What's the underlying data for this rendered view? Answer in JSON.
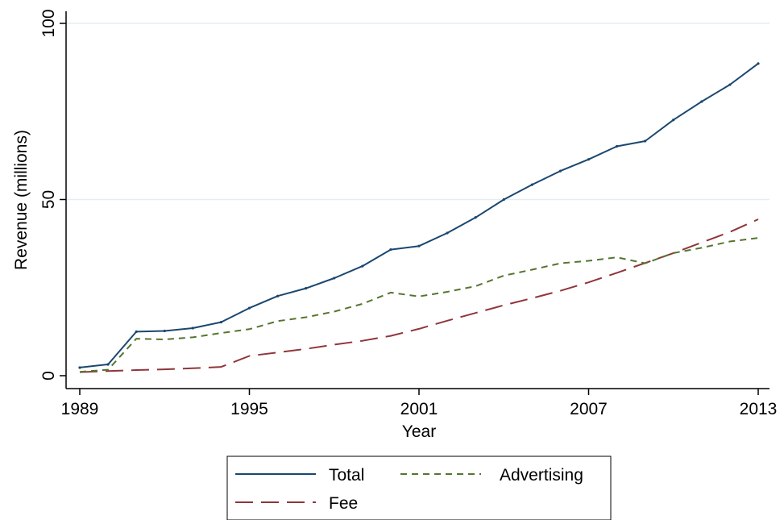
{
  "chart_data": {
    "type": "line",
    "xlabel": "Year",
    "ylabel": "Revenue (millions)",
    "x": [
      1989,
      1990,
      1991,
      1992,
      1993,
      1994,
      1995,
      1996,
      1997,
      1998,
      1999,
      2000,
      2001,
      2002,
      2003,
      2004,
      2005,
      2006,
      2007,
      2008,
      2009,
      2010,
      2011,
      2012,
      2013
    ],
    "xticks": [
      1989,
      1995,
      2001,
      2007,
      2013
    ],
    "xtick_labels": [
      "1989",
      "1995",
      "2001",
      "2007",
      "2013"
    ],
    "yticks": [
      0,
      50,
      100
    ],
    "ytick_labels": [
      "0",
      "50",
      "100"
    ],
    "xlim": [
      1989,
      2013
    ],
    "ylim": [
      0,
      100
    ],
    "grid": "horizontal",
    "legend_position": "bottom",
    "series": [
      {
        "name": "Total",
        "color": "#1a476f",
        "style": "solid",
        "markers": true,
        "values": [
          2.3,
          3.2,
          12.5,
          12.7,
          13.5,
          15.2,
          19.2,
          22.6,
          24.8,
          27.7,
          31.1,
          35.8,
          36.8,
          40.5,
          44.9,
          50.0,
          54.2,
          58.1,
          61.4,
          65.1,
          66.6,
          72.6,
          77.8,
          82.6,
          88.6
        ]
      },
      {
        "name": "Advertising",
        "color": "#55752f",
        "style": "short-dash",
        "markers": false,
        "values": [
          1.1,
          1.7,
          10.5,
          10.3,
          10.9,
          12.1,
          13.2,
          15.5,
          16.6,
          18.2,
          20.4,
          23.6,
          22.5,
          23.8,
          25.4,
          28.4,
          30.1,
          31.9,
          32.6,
          33.6,
          31.9,
          34.8,
          36.3,
          38.1,
          39.1
        ]
      },
      {
        "name": "Fee",
        "color": "#90353b",
        "style": "long-dash",
        "markers": false,
        "values": [
          1.0,
          1.3,
          1.6,
          1.8,
          2.1,
          2.5,
          5.6,
          6.6,
          7.6,
          8.8,
          9.9,
          11.3,
          13.3,
          15.6,
          17.8,
          20.0,
          22.0,
          24.1,
          26.5,
          29.2,
          32.0,
          34.8,
          37.8,
          40.8,
          44.4
        ]
      }
    ]
  }
}
